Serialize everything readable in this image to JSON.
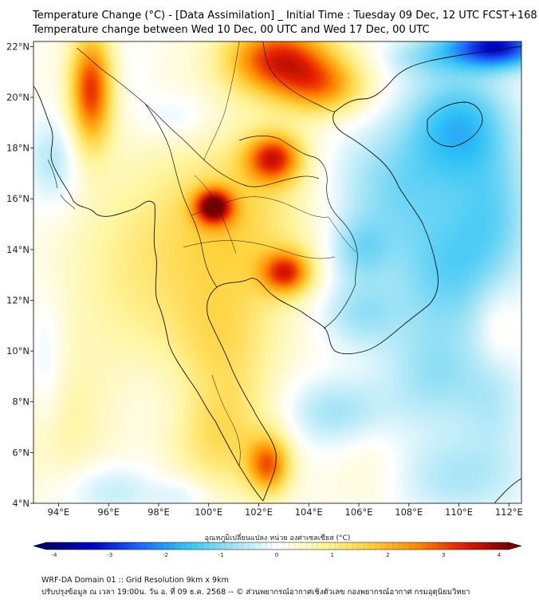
{
  "header": {
    "title": "Temperature Change (°C) - [Data Assimilation] _ Initial Time : Tuesday 09 Dec, 12 UTC FCST+168",
    "subtitle": "Temperature change between Wed 10 Dec, 00 UTC and Wed 17 Dec, 00 UTC"
  },
  "map": {
    "lon_range": [
      93,
      112.5
    ],
    "lat_range": [
      4,
      22.2
    ],
    "lon_ticks": [
      "94°E",
      "96°E",
      "98°E",
      "100°E",
      "102°E",
      "104°E",
      "106°E",
      "108°E",
      "110°E",
      "112°E"
    ],
    "lat_ticks": [
      "22°N",
      "20°N",
      "18°N",
      "16°N",
      "14°N",
      "12°N",
      "10°N",
      "8°N",
      "6°N",
      "4°N"
    ],
    "lon_values": [
      94,
      96,
      98,
      100,
      102,
      104,
      106,
      108,
      110,
      112
    ],
    "lat_values": [
      22,
      20,
      18,
      16,
      14,
      12,
      10,
      8,
      6,
      4
    ]
  },
  "colorbar": {
    "title": "อุณหภูมิเปลี่ยนแปลง หน่วย องศาเซลเซียส (°C)",
    "ticks": [
      "-4",
      "-3",
      "-2",
      "-1",
      "0",
      "1",
      "2",
      "3",
      "4"
    ],
    "min": -4,
    "max": 4,
    "colors": [
      "#00006e",
      "#0000c8",
      "#1e64ff",
      "#2ec3f5",
      "#9ee3f5",
      "#ffffff",
      "#fff59e",
      "#ffd23c",
      "#ff8c00",
      "#e61e00",
      "#780000"
    ]
  },
  "footer": {
    "line1": "WRF-DA Domain 01 :: Grid Resolution 9km x 9km",
    "line2": "ปรับปรุงข้อมูล ณ เวลา 19:00น. วัน อ. ที่ 09 ธ.ค. 2568 -- © ส่วนพยากรณ์อากาศเชิงตัวเลข กองพยากรณ์อากาศ กรมอุตุนิยมวิทยา"
  },
  "field_anomalies": [
    {
      "lon": 95.3,
      "lat": 20.3,
      "value": 2.9,
      "sx": 0.6,
      "sy": 1.6
    },
    {
      "lon": 102.8,
      "lat": 21.5,
      "value": 3.0,
      "sx": 1.5,
      "sy": 1.0
    },
    {
      "lon": 104.6,
      "lat": 20.4,
      "value": 1.8,
      "sx": 1.2,
      "sy": 0.8
    },
    {
      "lon": 102.6,
      "lat": 17.6,
      "value": 2.8,
      "sx": 0.8,
      "sy": 0.7
    },
    {
      "lon": 100.2,
      "lat": 15.7,
      "value": 3.1,
      "sx": 0.55,
      "sy": 0.5
    },
    {
      "lon": 103.1,
      "lat": 13.1,
      "value": 2.6,
      "sx": 0.7,
      "sy": 0.6
    },
    {
      "lon": 102.4,
      "lat": 5.5,
      "value": 2.3,
      "sx": 0.6,
      "sy": 0.8
    },
    {
      "lon": 101.0,
      "lat": 15.0,
      "value": 1.3,
      "sx": 2.2,
      "sy": 2.5
    },
    {
      "lon": 100.5,
      "lat": 10.0,
      "value": 1.0,
      "sx": 1.5,
      "sy": 2.0
    },
    {
      "lon": 100.5,
      "lat": 6.5,
      "value": 1.1,
      "sx": 1.5,
      "sy": 1.5
    },
    {
      "lon": 97.0,
      "lat": 13.0,
      "value": 0.7,
      "sx": 2.0,
      "sy": 3.0
    },
    {
      "lon": 94.0,
      "lat": 7.0,
      "value": 0.6,
      "sx": 1.5,
      "sy": 2.0
    },
    {
      "lon": 98.7,
      "lat": 19.2,
      "value": -0.5,
      "sx": 1.0,
      "sy": 0.7
    },
    {
      "lon": 93.8,
      "lat": 17.5,
      "value": -0.8,
      "sx": 0.8,
      "sy": 1.3
    },
    {
      "lon": 93.5,
      "lat": 9.0,
      "value": -0.6,
      "sx": 0.5,
      "sy": 2.0
    },
    {
      "lon": 96.0,
      "lat": 4.5,
      "value": -0.7,
      "sx": 1.5,
      "sy": 0.8
    },
    {
      "lon": 99.0,
      "lat": 4.3,
      "value": -0.5,
      "sx": 0.8,
      "sy": 0.5
    },
    {
      "lon": 107.5,
      "lat": 16.5,
      "value": -1.1,
      "sx": 2.0,
      "sy": 1.8
    },
    {
      "lon": 110.0,
      "lat": 19.0,
      "value": -1.6,
      "sx": 1.5,
      "sy": 1.5
    },
    {
      "lon": 111.5,
      "lat": 22.0,
      "value": -3.2,
      "sx": 1.4,
      "sy": 0.6
    },
    {
      "lon": 108.5,
      "lat": 21.6,
      "value": -0.7,
      "sx": 1.2,
      "sy": 0.6
    },
    {
      "lon": 109.5,
      "lat": 13.0,
      "value": -1.2,
      "sx": 1.6,
      "sy": 1.8
    },
    {
      "lon": 106.0,
      "lat": 14.0,
      "value": -0.9,
      "sx": 0.9,
      "sy": 0.9
    },
    {
      "lon": 111.5,
      "lat": 15.5,
      "value": -1.0,
      "sx": 1.2,
      "sy": 2.0
    },
    {
      "lon": 106.0,
      "lat": 11.5,
      "value": -0.9,
      "sx": 1.2,
      "sy": 1.0
    },
    {
      "lon": 109.0,
      "lat": 9.0,
      "value": -0.9,
      "sx": 1.5,
      "sy": 1.5
    },
    {
      "lon": 105.0,
      "lat": 7.6,
      "value": -0.9,
      "sx": 1.5,
      "sy": 1.0
    },
    {
      "lon": 111.5,
      "lat": 8.0,
      "value": -0.6,
      "sx": 1.0,
      "sy": 1.5
    },
    {
      "lon": 110.0,
      "lat": 5.0,
      "value": -0.8,
      "sx": 2.0,
      "sy": 1.2
    },
    {
      "lon": 111.5,
      "lat": 11.0,
      "value": 0.4,
      "sx": 0.6,
      "sy": 1.2
    },
    {
      "lon": 106.5,
      "lat": 5.5,
      "value": 0.3,
      "sx": 1.0,
      "sy": 1.2
    },
    {
      "lon": 98.5,
      "lat": 8.0,
      "value": -0.3,
      "sx": 1.5,
      "sy": 1.5
    },
    {
      "lon": 97.0,
      "lat": 21.0,
      "value": -0.2,
      "sx": 0.6,
      "sy": 1.0
    }
  ]
}
